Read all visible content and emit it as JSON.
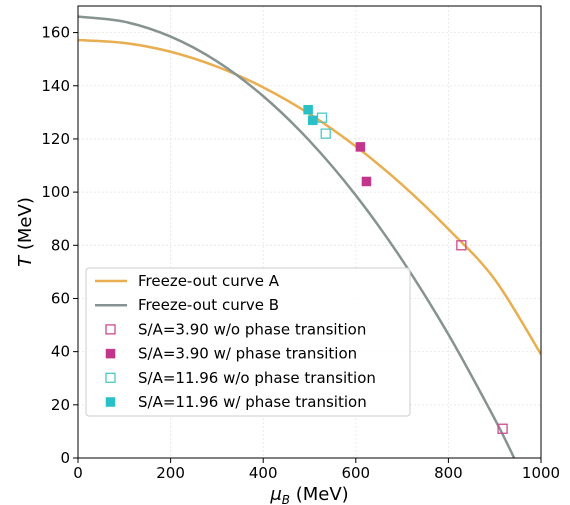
{
  "chart_data": {
    "type": "line",
    "xlabel": "μ_B (MeV)",
    "ylabel": "T (MeV)",
    "xlim": [
      0,
      1000
    ],
    "ylim": [
      0,
      170
    ],
    "xticks": [
      0,
      200,
      400,
      600,
      800,
      1000
    ],
    "yticks": [
      0,
      20,
      40,
      60,
      80,
      100,
      120,
      140,
      160
    ],
    "grid": true,
    "legend_position": "lower-left",
    "curves": [
      {
        "name": "Freeze-out curve A",
        "color": "#e8ae4f",
        "x": [
          0,
          100,
          200,
          300,
          400,
          500,
          600,
          700,
          800,
          900,
          1000
        ],
        "y": [
          157.2,
          156.1,
          152.8,
          147.2,
          139.4,
          129.4,
          117.2,
          102.8,
          86.1,
          67.2,
          39.0
        ]
      },
      {
        "name": "Freeze-out curve B",
        "color": "#869391",
        "x": [
          0,
          100,
          200,
          300,
          400,
          500,
          600,
          700,
          800,
          900,
          942
        ],
        "y": [
          166.0,
          164.1,
          158.5,
          149.2,
          136.1,
          119.3,
          98.8,
          74.5,
          46.5,
          14.7,
          0
        ]
      }
    ],
    "markers": [
      {
        "name": "S/A=3.90 w/o phase transition",
        "color": "#cb4b91",
        "filled": false,
        "points": [
          [
            828,
            80
          ],
          [
            917,
            11
          ]
        ]
      },
      {
        "name": "S/A=3.90 w/ phase transition",
        "color": "#c2358a",
        "filled": true,
        "points": [
          [
            610,
            117
          ],
          [
            623,
            104
          ]
        ]
      },
      {
        "name": "S/A=11.96 w/o phase transition",
        "color": "#4fc8c8",
        "filled": false,
        "points": [
          [
            527,
            128
          ],
          [
            535,
            122
          ]
        ]
      },
      {
        "name": "S/A=11.96 w/ phase transition",
        "color": "#29c1c7",
        "filled": true,
        "points": [
          [
            497,
            131
          ],
          [
            507,
            127
          ]
        ]
      }
    ]
  }
}
